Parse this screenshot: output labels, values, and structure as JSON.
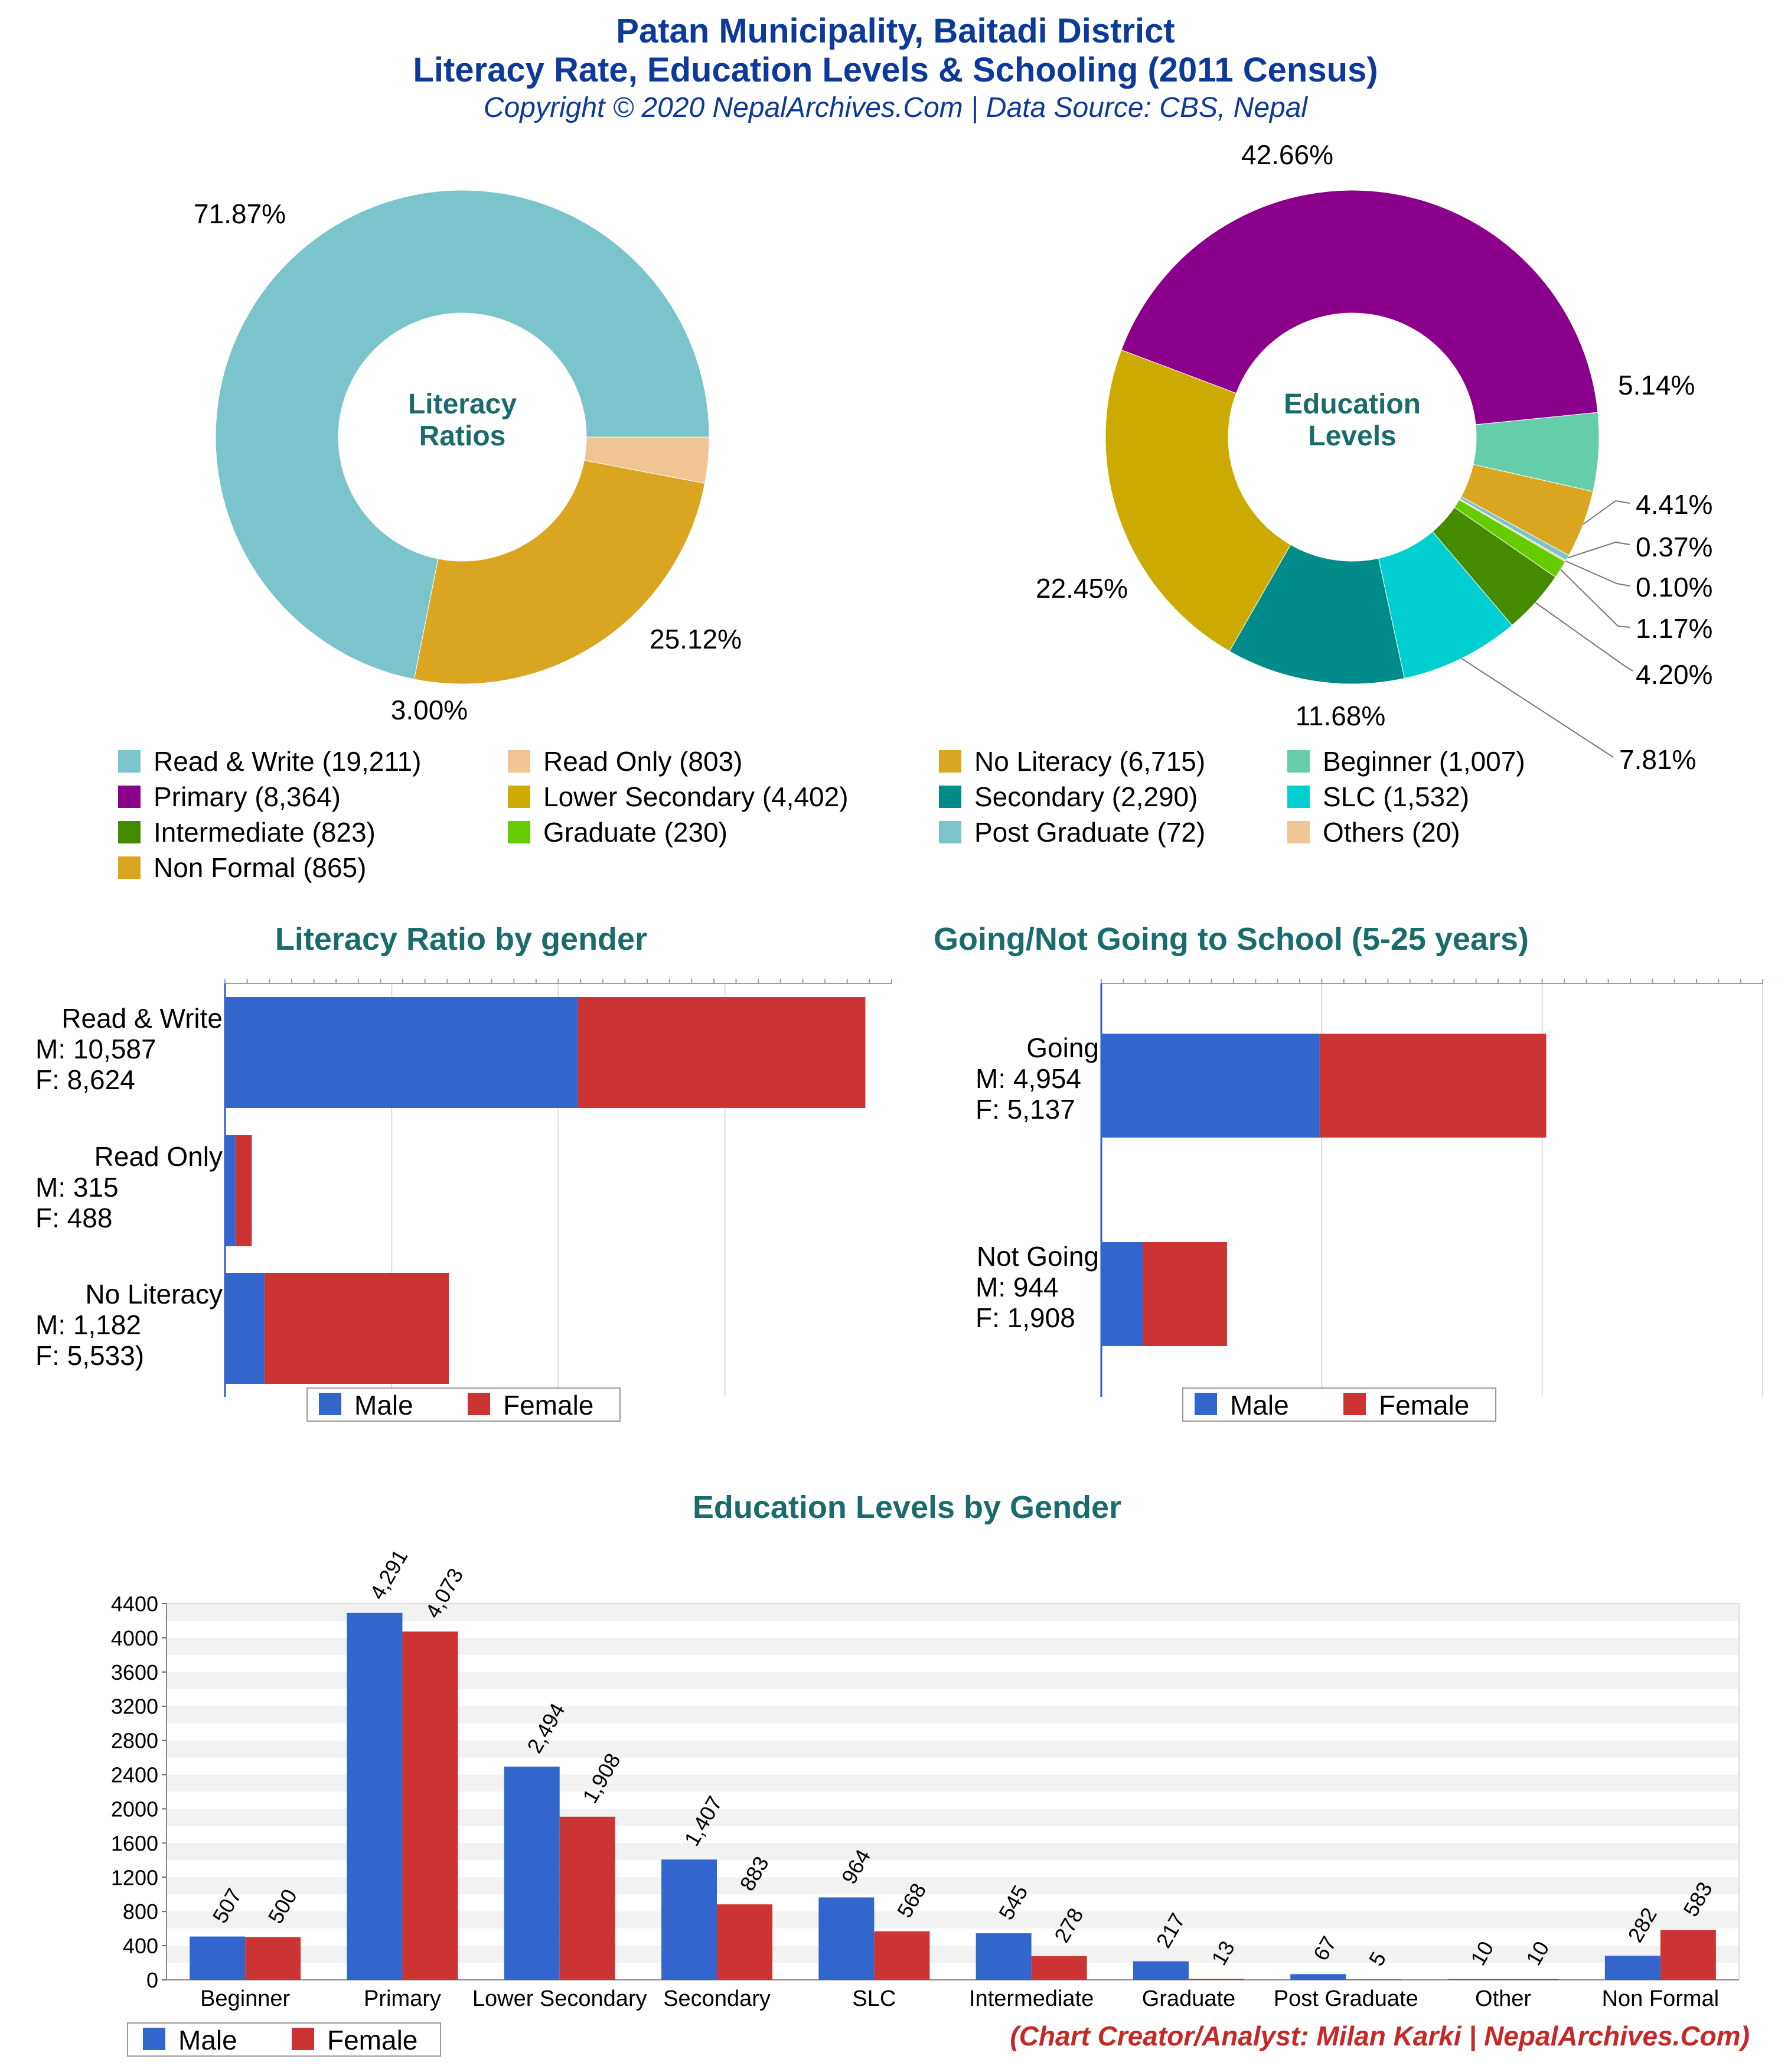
{
  "header": {
    "title_line1": "Patan Municipality, Baitadi District",
    "title_line2": "Literacy Rate, Education Levels & Schooling (2011 Census)",
    "copyright": "Copyright © 2020 NepalArchives.Com | Data Source: CBS, Nepal"
  },
  "footer": {
    "credit": "(Chart Creator/Analyst: Milan Karki | NepalArchives.Com)"
  },
  "colors": {
    "male": "#3366cc",
    "female": "#cc3333",
    "title_teal": "#1a6b6b",
    "header_blue": "#0d3a9a"
  },
  "chart_data": [
    {
      "type": "pie",
      "center_label": [
        "Literacy",
        "Ratios"
      ],
      "slices": [
        {
          "label": "Read & Write",
          "value": 19211,
          "percent": "71.87%",
          "color": "#7cc4cc"
        },
        {
          "label": "Read Only",
          "value": 803,
          "percent": "3.00%",
          "color": "#efc593"
        },
        {
          "label": "No Literacy",
          "value": 6715,
          "percent": "25.12%",
          "color": "#daa520"
        }
      ]
    },
    {
      "type": "pie",
      "center_label": [
        "Education",
        "Levels"
      ],
      "slices": [
        {
          "label": "Primary",
          "value": 8364,
          "percent": "42.66%",
          "color": "#8b008b"
        },
        {
          "label": "Beginner",
          "value": 1007,
          "percent": "5.14%",
          "color": "#66cdaa"
        },
        {
          "label": "Non Formal",
          "value": 865,
          "percent": "4.41%",
          "color": "#daa520"
        },
        {
          "label": "Post Graduate",
          "value": 72,
          "percent": "0.37%",
          "color": "#7cc4cc"
        },
        {
          "label": "Others",
          "value": 20,
          "percent": "0.10%",
          "color": "#efc593"
        },
        {
          "label": "Graduate",
          "value": 230,
          "percent": "1.17%",
          "color": "#66cc00"
        },
        {
          "label": "Intermediate",
          "value": 823,
          "percent": "4.20%",
          "color": "#458b00"
        },
        {
          "label": "SLC",
          "value": 1532,
          "percent": "7.81%",
          "color": "#00ced1"
        },
        {
          "label": "Secondary",
          "value": 2290,
          "percent": "11.68%",
          "color": "#008b8b"
        },
        {
          "label": "Lower Secondary",
          "value": 4402,
          "percent": "22.45%",
          "color": "#ccaa00"
        }
      ]
    },
    {
      "type": "bar",
      "orientation": "horizontal",
      "stacked": true,
      "title": "Literacy Ratio by gender",
      "categories": [
        {
          "name": "Read & Write",
          "m_label": "M: 10,587",
          "f_label": "F: 8,624"
        },
        {
          "name": "Read Only",
          "m_label": "M: 315",
          "f_label": "F: 488"
        },
        {
          "name": "No Literacy",
          "m_label": "M: 1,182",
          "f_label": "F: 5,533)"
        }
      ],
      "series": [
        {
          "name": "Male",
          "values": [
            10587,
            315,
            1182
          ]
        },
        {
          "name": "Female",
          "values": [
            8624,
            488,
            5533
          ]
        }
      ],
      "xlim": [
        0,
        20000
      ],
      "legend": "bottom"
    },
    {
      "type": "bar",
      "orientation": "horizontal",
      "stacked": true,
      "title": "Going/Not Going to School (5-25 years)",
      "categories": [
        {
          "name": "Going",
          "m_label": "M: 4,954",
          "f_label": "F: 5,137"
        },
        {
          "name": "Not Going",
          "m_label": "M: 944",
          "f_label": "F: 1,908"
        }
      ],
      "series": [
        {
          "name": "Male",
          "values": [
            4954,
            944
          ]
        },
        {
          "name": "Female",
          "values": [
            5137,
            1908
          ]
        }
      ],
      "xlim": [
        0,
        15000
      ],
      "legend": "bottom"
    },
    {
      "type": "bar",
      "title": "Education Levels by Gender",
      "categories": [
        "Beginner",
        "Primary",
        "Lower Secondary",
        "Secondary",
        "SLC",
        "Intermediate",
        "Graduate",
        "Post Graduate",
        "Other",
        "Non Formal"
      ],
      "series": [
        {
          "name": "Male",
          "values": [
            507,
            4291,
            2494,
            1407,
            964,
            545,
            217,
            67,
            10,
            282
          ],
          "labels": [
            "507",
            "4,291",
            "2,494",
            "1,407",
            "964",
            "545",
            "217",
            "67",
            "10",
            "282"
          ]
        },
        {
          "name": "Female",
          "values": [
            500,
            4073,
            1908,
            883,
            568,
            278,
            13,
            5,
            10,
            583
          ],
          "labels": [
            "500",
            "4,073",
            "1,908",
            "883",
            "568",
            "278",
            "13",
            "5",
            "10",
            "583"
          ]
        }
      ],
      "ylim": [
        0,
        4400
      ],
      "yticks": [
        "0",
        "400",
        "800",
        "1200",
        "1600",
        "2000",
        "2400",
        "2800",
        "3200",
        "3600",
        "4000",
        "4400"
      ],
      "legend": "bottom-left"
    }
  ],
  "legend_top": [
    {
      "label": "Read & Write (19,211)",
      "color": "#7cc4cc"
    },
    {
      "label": "Read Only (803)",
      "color": "#efc593"
    },
    {
      "label": "No Literacy (6,715)",
      "color": "#daa520"
    },
    {
      "label": "Beginner (1,007)",
      "color": "#66cdaa"
    },
    {
      "label": "Primary (8,364)",
      "color": "#8b008b"
    },
    {
      "label": "Lower Secondary (4,402)",
      "color": "#ccaa00"
    },
    {
      "label": "Secondary (2,290)",
      "color": "#008b8b"
    },
    {
      "label": "SLC (1,532)",
      "color": "#00ced1"
    },
    {
      "label": "Intermediate (823)",
      "color": "#458b00"
    },
    {
      "label": "Graduate (230)",
      "color": "#66cc00"
    },
    {
      "label": "Post Graduate (72)",
      "color": "#7cc4cc"
    },
    {
      "label": "Others (20)",
      "color": "#efc593"
    },
    {
      "label": "Non Formal (865)",
      "color": "#daa520"
    }
  ]
}
